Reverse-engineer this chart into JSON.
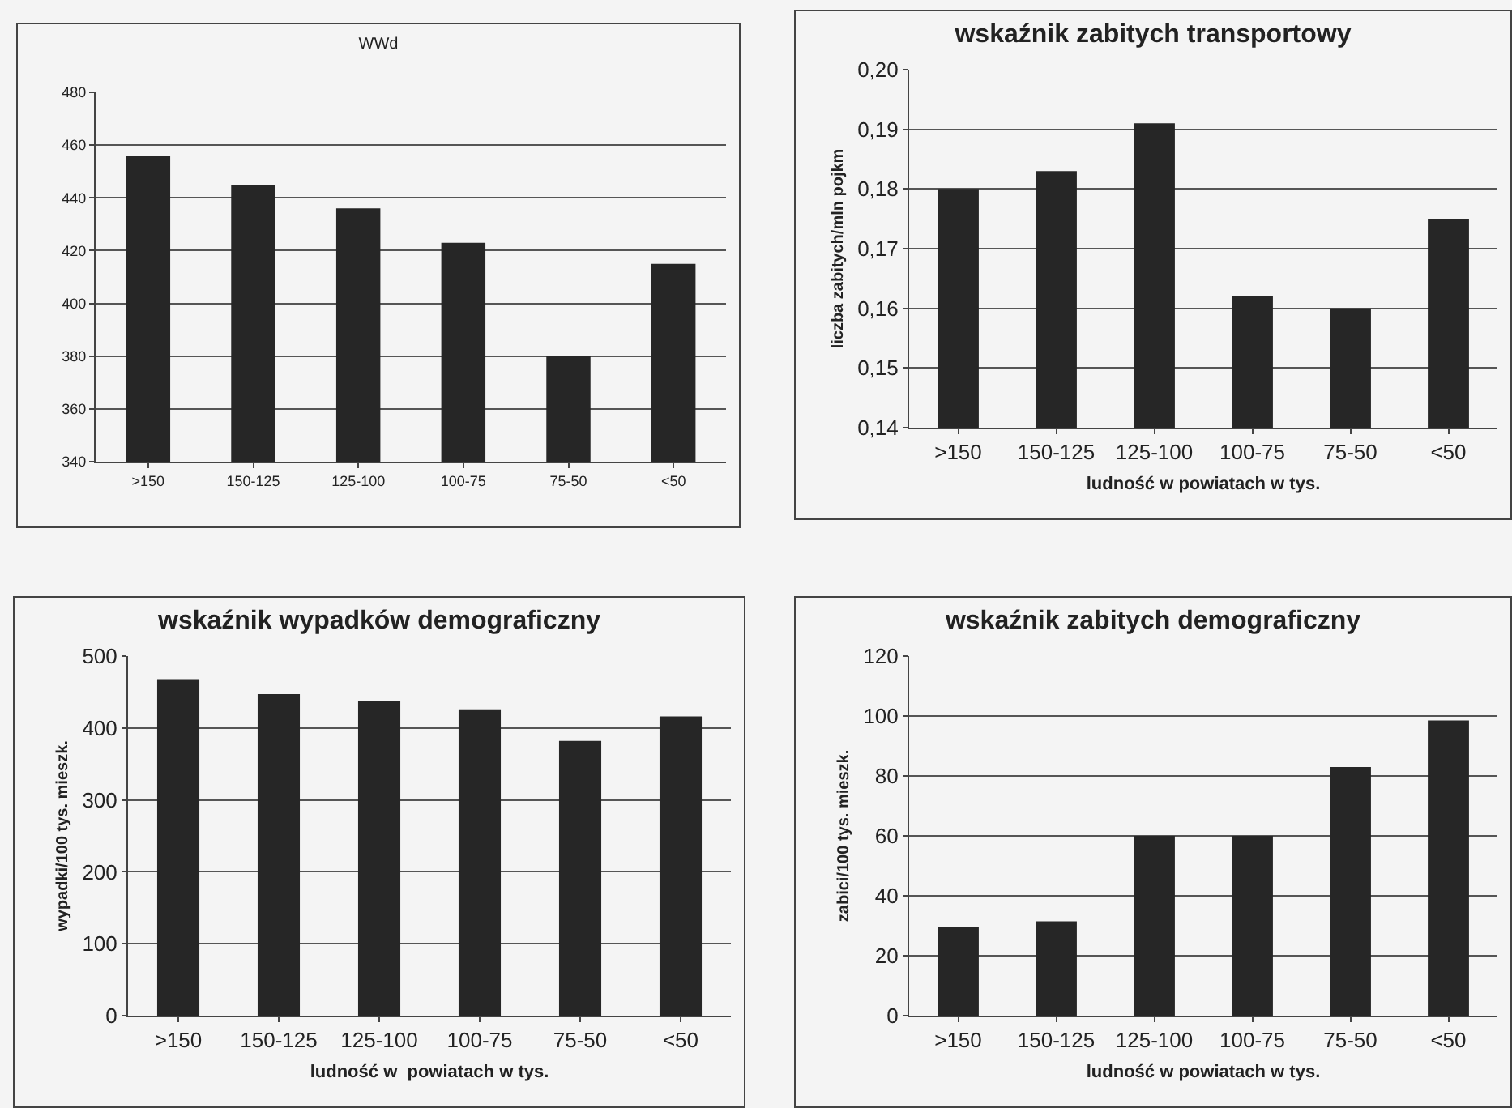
{
  "chart_data": [
    {
      "type": "bar",
      "title": "WWd",
      "categories": [
        ">150",
        "150-125",
        "125-100",
        "100-75",
        "75-50",
        "<50"
      ],
      "values": [
        456,
        445,
        436,
        423,
        380,
        415
      ],
      "color": "#262626",
      "ylim": [
        340,
        480
      ],
      "yticks": [
        340,
        360,
        380,
        400,
        420,
        440,
        460,
        480
      ],
      "grid": "y",
      "legend": false
    },
    {
      "type": "bar",
      "title": "wskaźnik zabitych transportowy",
      "xlabel": "ludność w powiatach w tys.",
      "ylabel": "liczba zabitych/mln pojkm",
      "categories": [
        ">150",
        "150-125",
        "125-100",
        "100-75",
        "75-50",
        "<50"
      ],
      "values": [
        0.18,
        0.183,
        0.191,
        0.162,
        0.16,
        0.175
      ],
      "color": "#262626",
      "ylim": [
        0.14,
        0.2
      ],
      "yticks": [
        {
          "value": 0.14,
          "label": "0,14"
        },
        {
          "value": 0.15,
          "label": "0,15"
        },
        {
          "value": 0.16,
          "label": "0,16"
        },
        {
          "value": 0.17,
          "label": "0,17"
        },
        {
          "value": 0.18,
          "label": "0,18"
        },
        {
          "value": 0.19,
          "label": "0,19"
        },
        {
          "value": 0.2,
          "label": "0,20"
        }
      ],
      "grid": "y",
      "legend": false
    },
    {
      "type": "bar",
      "title": "wskaźnik wypadków demograficzny",
      "xlabel": "ludność w  powiatach w tys.",
      "ylabel": "wypadki/100 tys. mieszk.",
      "categories": [
        ">150",
        "150-125",
        "125-100",
        "100-75",
        "75-50",
        "<50"
      ],
      "values": [
        468,
        447,
        437,
        426,
        382,
        416
      ],
      "color": "#262626",
      "ylim": [
        0,
        500
      ],
      "yticks": [
        0,
        100,
        200,
        300,
        400,
        500
      ],
      "grid": "y",
      "legend": false
    },
    {
      "type": "bar",
      "title": "wskaźnik zabitych demograficzny",
      "xlabel": "ludność w powiatach w tys.",
      "ylabel": "zabici/100 tys. mieszk.",
      "categories": [
        ">150",
        "150-125",
        "125-100",
        "100-75",
        "75-50",
        "<50"
      ],
      "values": [
        29.5,
        31.5,
        60,
        60,
        83,
        98.5
      ],
      "color": "#262626",
      "ylim": [
        0,
        120
      ],
      "yticks": [
        0,
        20,
        40,
        60,
        80,
        100,
        120
      ],
      "grid": "y",
      "legend": false
    }
  ]
}
